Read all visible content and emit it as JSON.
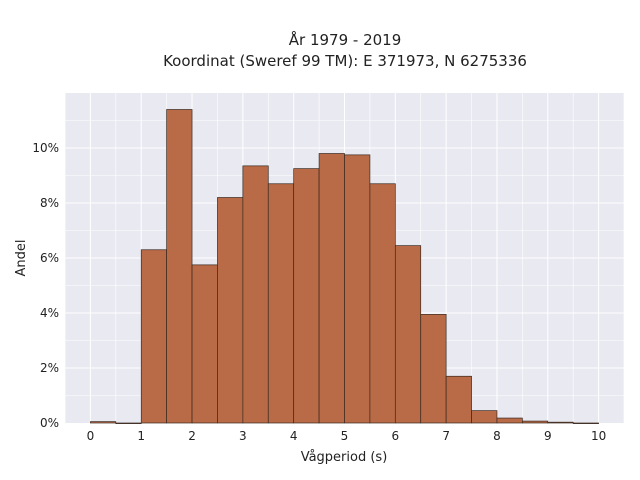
{
  "chart_data": {
    "type": "bar",
    "title_line1": "År 1979 - 2019",
    "title_line2": "Koordinat (Sweref 99 TM): E 371973, N 6275336",
    "xlabel": "Vågperiod (s)",
    "ylabel": "Andel",
    "bin_width": 0.5,
    "bin_starts": [
      0,
      0.5,
      1,
      1.5,
      2,
      2.5,
      3,
      3.5,
      4,
      4.5,
      5,
      5.5,
      6,
      6.5,
      7,
      7.5,
      8,
      8.5,
      9,
      9.5
    ],
    "values": [
      0.05,
      0,
      6.3,
      11.4,
      5.75,
      8.2,
      9.35,
      8.7,
      9.25,
      9.8,
      9.75,
      8.7,
      6.45,
      3.95,
      1.7,
      0.45,
      0.18,
      0.07,
      0.03,
      0
    ],
    "xlim": [
      -0.5,
      10.5
    ],
    "ylim": [
      0,
      12
    ],
    "x_ticks": [
      0,
      1,
      2,
      3,
      4,
      5,
      6,
      7,
      8,
      9,
      10
    ],
    "x_tick_labels": [
      "0",
      "1",
      "2",
      "3",
      "4",
      "5",
      "6",
      "7",
      "8",
      "9",
      "10"
    ],
    "y_ticks": [
      0,
      2,
      4,
      6,
      8,
      10
    ],
    "y_tick_labels": [
      "0%",
      "2%",
      "4%",
      "6%",
      "8%",
      "10%"
    ],
    "grid": true,
    "bar_color": "#b96a46",
    "bar_edge_color": "#3a2a20",
    "plot_background": "#e9e9f1",
    "grid_color": "#ffffff"
  }
}
